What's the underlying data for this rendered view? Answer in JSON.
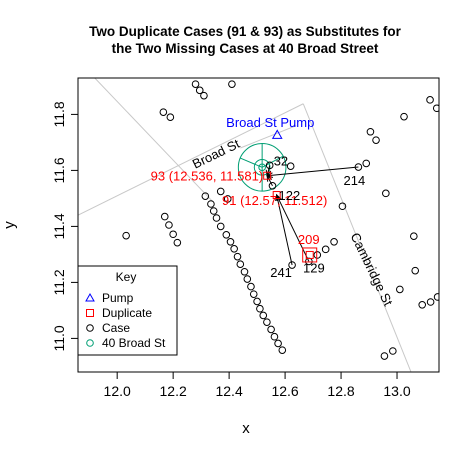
{
  "chart_data": {
    "type": "scatter",
    "title": "Two Duplicate Cases (91 & 93) as Substitutes for\nthe Two Missing Cases at 40 Broad Street",
    "xlabel": "x",
    "ylabel": "y",
    "xlim": [
      11.86,
      13.15
    ],
    "ylim": [
      10.88,
      11.93
    ],
    "x_ticks": [
      "12.0",
      "12.2",
      "12.4",
      "12.6",
      "12.8",
      "13.0"
    ],
    "y_ticks": [
      "11.0",
      "11.2",
      "11.4",
      "11.6",
      "11.8"
    ],
    "grid": false,
    "colors": {
      "pump": "#0000ff",
      "duplicate": "#ff0000",
      "case": "#000000",
      "broad40": "#009e73",
      "road": "#c8c8c8",
      "arrow": "#000000"
    },
    "pump": {
      "x": 12.572,
      "y": 11.727,
      "label": "Broad St Pump"
    },
    "broad_st_center": {
      "x": 12.518,
      "y": 11.611
    },
    "circle_radii": [
      0.028,
      0.085
    ],
    "duplicates": [
      {
        "id": "93",
        "label": "93 (12.536, 11.581)",
        "x": 12.536,
        "y": 11.581
      },
      {
        "id": "91",
        "label": "91 (12.57, 11.512)",
        "x": 12.57,
        "y": 11.512
      },
      {
        "id": "209",
        "label": "209",
        "x": 12.688,
        "y": 11.298
      }
    ],
    "labeled_cases": [
      {
        "label": "32",
        "x": 12.545,
        "y": 11.618
      },
      {
        "label": "122",
        "x": 12.555,
        "y": 11.545
      },
      {
        "label": "214",
        "x": 12.862,
        "y": 11.612
      },
      {
        "label": "241",
        "x": 12.625,
        "y": 11.262
      },
      {
        "label": "129",
        "x": 12.685,
        "y": 11.275
      }
    ],
    "arrows": [
      {
        "from": [
          12.862,
          11.612
        ],
        "to": [
          12.536,
          11.581
        ]
      },
      {
        "from": [
          12.545,
          11.618
        ],
        "to": [
          12.536,
          11.581
        ]
      },
      {
        "from": [
          12.555,
          11.545
        ],
        "to": [
          12.536,
          11.581
        ]
      },
      {
        "from": [
          12.625,
          11.262
        ],
        "to": [
          12.57,
          11.512
        ]
      },
      {
        "from": [
          12.685,
          11.275
        ],
        "to": [
          12.57,
          11.512
        ]
      }
    ],
    "roads": [
      {
        "from": [
          11.86,
          11.44
        ],
        "to": [
          12.665,
          11.838
        ]
      },
      {
        "from": [
          11.92,
          11.93
        ],
        "to": [
          12.34,
          11.49
        ]
      },
      {
        "from": [
          12.665,
          11.838
        ],
        "to": [
          13.05,
          10.88
        ]
      },
      {
        "from": [
          12.44,
          11.68
        ],
        "to": [
          12.64,
          11.76
        ]
      }
    ],
    "road_labels": [
      {
        "text": "Broad St",
        "x": 12.36,
        "y": 11.645,
        "angle": -26
      },
      {
        "text": "Cambridge St",
        "x": 12.895,
        "y": 11.24,
        "angle": 64
      }
    ],
    "cases": [
      [
        12.032,
        11.367
      ],
      [
        12.165,
        11.808
      ],
      [
        12.19,
        11.79
      ],
      [
        12.17,
        11.435
      ],
      [
        12.185,
        11.405
      ],
      [
        12.2,
        11.372
      ],
      [
        12.215,
        11.342
      ],
      [
        12.28,
        11.908
      ],
      [
        12.295,
        11.886
      ],
      [
        12.31,
        11.867
      ],
      [
        12.41,
        11.908
      ],
      [
        12.315,
        11.508
      ],
      [
        12.335,
        11.48
      ],
      [
        12.345,
        11.455
      ],
      [
        12.355,
        11.43
      ],
      [
        12.37,
        11.4
      ],
      [
        12.39,
        11.37
      ],
      [
        12.405,
        11.345
      ],
      [
        12.418,
        11.32
      ],
      [
        12.43,
        11.292
      ],
      [
        12.44,
        11.265
      ],
      [
        12.455,
        11.238
      ],
      [
        12.465,
        11.212
      ],
      [
        12.478,
        11.185
      ],
      [
        12.488,
        11.158
      ],
      [
        12.5,
        11.132
      ],
      [
        12.51,
        11.106
      ],
      [
        12.522,
        11.082
      ],
      [
        12.535,
        11.058
      ],
      [
        12.55,
        11.032
      ],
      [
        12.562,
        11.006
      ],
      [
        12.575,
        10.982
      ],
      [
        12.59,
        10.958
      ],
      [
        12.37,
        11.525
      ],
      [
        12.395,
        11.498
      ],
      [
        12.545,
        11.618
      ],
      [
        12.555,
        11.545
      ],
      [
        12.62,
        11.615
      ],
      [
        12.625,
        11.262
      ],
      [
        12.685,
        11.275
      ],
      [
        12.715,
        11.298
      ],
      [
        12.745,
        11.318
      ],
      [
        12.775,
        11.345
      ],
      [
        12.805,
        11.472
      ],
      [
        12.862,
        11.612
      ],
      [
        12.89,
        11.625
      ],
      [
        12.905,
        11.738
      ],
      [
        12.925,
        11.708
      ],
      [
        12.96,
        11.518
      ],
      [
        12.985,
        10.955
      ],
      [
        12.955,
        10.937
      ],
      [
        13.01,
        11.175
      ],
      [
        13.025,
        11.792
      ],
      [
        13.06,
        11.365
      ],
      [
        13.065,
        11.242
      ],
      [
        13.09,
        11.12
      ],
      [
        13.118,
        11.852
      ],
      [
        13.142,
        11.822
      ],
      [
        13.12,
        11.13
      ],
      [
        13.145,
        11.148
      ]
    ],
    "legend": {
      "title": "Key",
      "position": "bottom-left",
      "items": [
        {
          "label": "Pump",
          "symbol": "triangle",
          "color": "#0000ff"
        },
        {
          "label": "Duplicate",
          "symbol": "square",
          "color": "#ff0000"
        },
        {
          "label": "Case",
          "symbol": "circle",
          "color": "#000000"
        },
        {
          "label": "40 Broad St",
          "symbol": "circle",
          "color": "#009e73"
        }
      ]
    }
  }
}
